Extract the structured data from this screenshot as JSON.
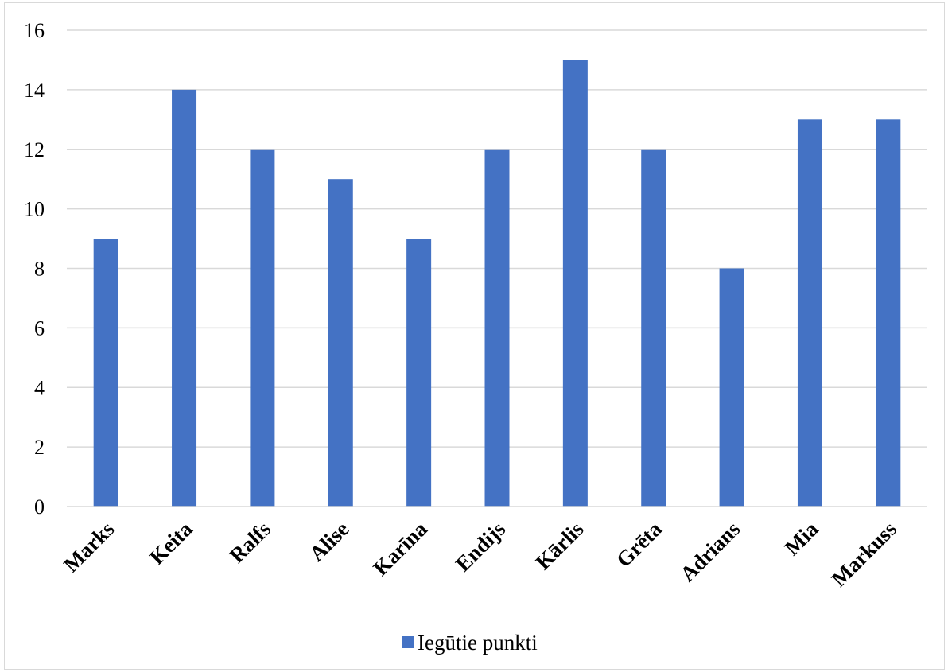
{
  "chart_data": {
    "type": "bar",
    "categories": [
      "Marks",
      "Keita",
      "Ralfs",
      "Alise",
      "Karīna",
      "Endijs",
      "Kārlis",
      "Grēta",
      "Adrians",
      "Mia",
      "Markuss"
    ],
    "series": [
      {
        "name": "Iegūtie punkti",
        "values": [
          9,
          14,
          12,
          11,
          9,
          12,
          15,
          12,
          8,
          13,
          13
        ],
        "color": "#4472c4"
      }
    ],
    "ylim": [
      0,
      16
    ],
    "yticks": [
      "0",
      "2",
      "4",
      "6",
      "8",
      "10",
      "12",
      "14",
      "16"
    ],
    "grid": true,
    "legend": "bottom"
  }
}
